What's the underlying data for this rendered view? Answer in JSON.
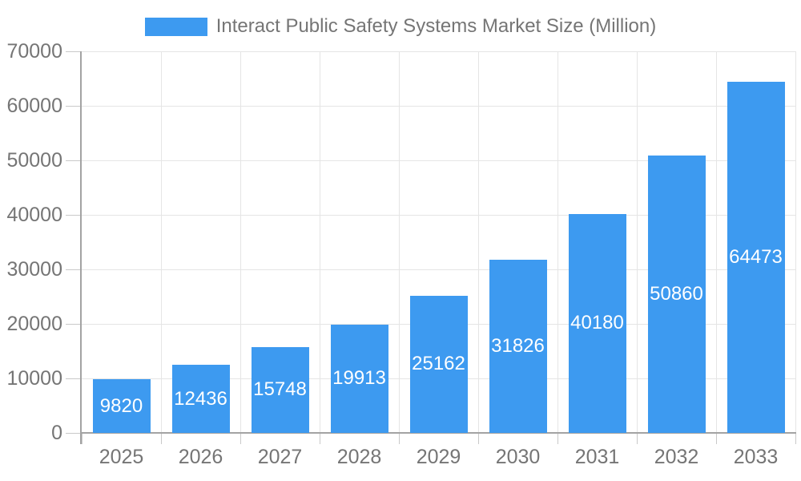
{
  "chart_data": {
    "type": "bar",
    "title": "Interact Public Safety Systems Market Size (Million)",
    "categories": [
      "2025",
      "2026",
      "2027",
      "2028",
      "2029",
      "2030",
      "2031",
      "2032",
      "2033"
    ],
    "values": [
      9820,
      12436,
      15748,
      19913,
      25162,
      31826,
      40180,
      50860,
      64473
    ],
    "xlabel": "",
    "ylabel": "",
    "ylim": [
      0,
      70000
    ],
    "yticks": [
      0,
      10000,
      20000,
      30000,
      40000,
      50000,
      60000,
      70000
    ],
    "legend_position": "top",
    "grid": true,
    "value_labels": "inside-centered",
    "colors": {
      "bar": "#3D9AF0",
      "grid": "#E5E5E5",
      "axis": "#A3A3A3",
      "tick": "#C9C9C9",
      "text": "#757575",
      "value_label": "#FFFFFF",
      "background": "#FFFFFF"
    }
  }
}
